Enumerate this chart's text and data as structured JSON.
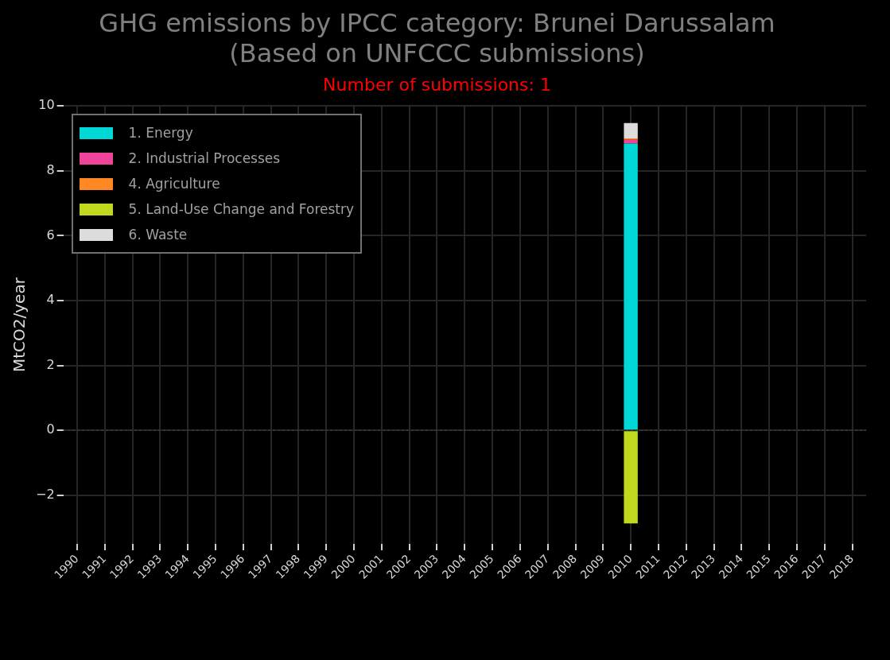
{
  "chart_data": {
    "type": "bar",
    "stacked": true,
    "title": "GHG emissions by IPCC category: Brunei Darussalam\n(Based on UNFCCC submissions)",
    "subtitle": "Number of submissions: 1",
    "ylabel": "MtCO2/year",
    "categories": [
      "1990",
      "1991",
      "1992",
      "1993",
      "1994",
      "1995",
      "1996",
      "1997",
      "1998",
      "1999",
      "2000",
      "2001",
      "2002",
      "2003",
      "2004",
      "2005",
      "2006",
      "2007",
      "2008",
      "2009",
      "2010",
      "2011",
      "2012",
      "2013",
      "2014",
      "2015",
      "2016",
      "2017",
      "2018"
    ],
    "series": [
      {
        "name": "1. Energy",
        "color": "#00d8d8",
        "values": [
          null,
          null,
          null,
          null,
          null,
          null,
          null,
          null,
          null,
          null,
          null,
          null,
          null,
          null,
          null,
          null,
          null,
          null,
          null,
          null,
          8.84,
          null,
          null,
          null,
          null,
          null,
          null,
          null,
          null
        ]
      },
      {
        "name": "2. Industrial Processes",
        "color": "#f0449a",
        "values": [
          null,
          null,
          null,
          null,
          null,
          null,
          null,
          null,
          null,
          null,
          null,
          null,
          null,
          null,
          null,
          null,
          null,
          null,
          null,
          null,
          0.12,
          null,
          null,
          null,
          null,
          null,
          null,
          null,
          null
        ]
      },
      {
        "name": "4. Agriculture",
        "color": "#ff8822",
        "values": [
          null,
          null,
          null,
          null,
          null,
          null,
          null,
          null,
          null,
          null,
          null,
          null,
          null,
          null,
          null,
          null,
          null,
          null,
          null,
          null,
          0.04,
          null,
          null,
          null,
          null,
          null,
          null,
          null,
          null
        ]
      },
      {
        "name": "5. Land-Use Change and Forestry",
        "color": "#c0d81e",
        "values": [
          null,
          null,
          null,
          null,
          null,
          null,
          null,
          null,
          null,
          null,
          null,
          null,
          null,
          null,
          null,
          null,
          null,
          null,
          null,
          null,
          -2.87,
          null,
          null,
          null,
          null,
          null,
          null,
          null,
          null
        ]
      },
      {
        "name": "6. Waste",
        "color": "#dcdcdc",
        "values": [
          null,
          null,
          null,
          null,
          null,
          null,
          null,
          null,
          null,
          null,
          null,
          null,
          null,
          null,
          null,
          null,
          null,
          null,
          null,
          null,
          0.47,
          null,
          null,
          null,
          null,
          null,
          null,
          null,
          null
        ]
      }
    ],
    "ylim": [
      -3.5,
      10
    ],
    "yticks": [
      {
        "value": -2,
        "label": "−2"
      },
      0,
      2,
      4,
      6,
      8,
      10
    ],
    "ref_lines": [
      {
        "axis": "y",
        "value": 0,
        "color": "#404040",
        "line_style": "dotted"
      }
    ],
    "grid": true,
    "legend": "top left"
  }
}
